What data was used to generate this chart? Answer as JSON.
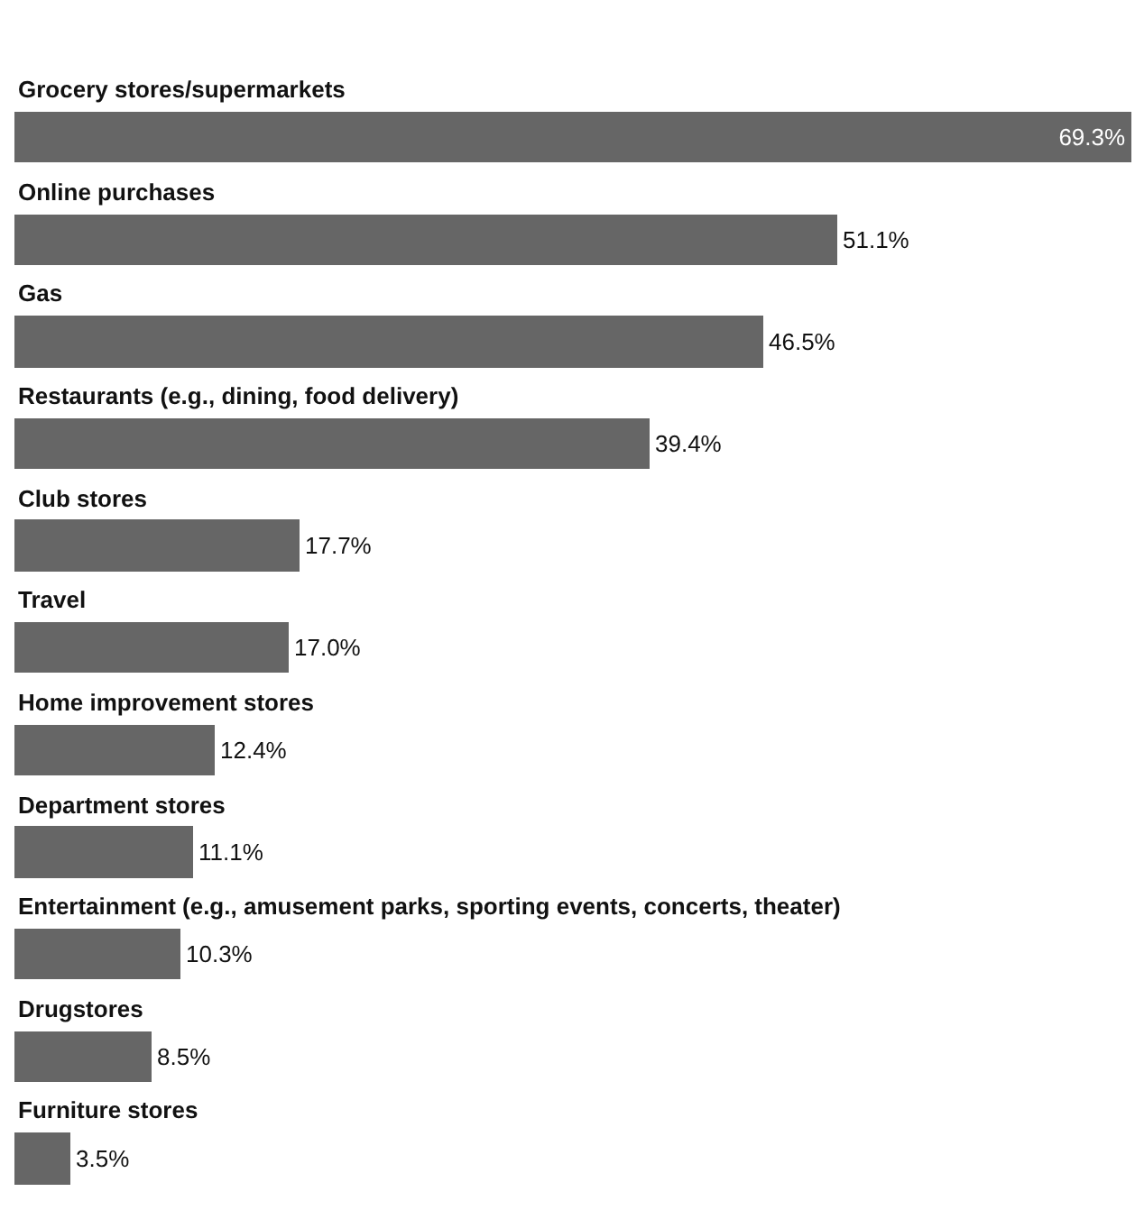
{
  "chart_data": {
    "type": "bar",
    "orientation": "horizontal",
    "color": "#666666",
    "categories": [
      "Grocery stores/supermarkets",
      "Online purchases",
      "Gas",
      "Restaurants (e.g., dining, food delivery)",
      "Club stores",
      "Travel",
      "Home improvement stores",
      "Department stores",
      "Entertainment (e.g., amusement parks, sporting events, concerts, theater)",
      "Drugstores",
      "Furniture stores"
    ],
    "values": [
      69.3,
      51.1,
      46.5,
      39.4,
      17.7,
      17.0,
      12.4,
      11.1,
      10.3,
      8.5,
      3.5
    ],
    "value_labels": [
      "69.3%",
      "51.1%",
      "46.5%",
      "39.4%",
      "17.7%",
      "17.0%",
      "12.4%",
      "11.1%",
      "10.3%",
      "8.5%",
      "3.5%"
    ],
    "xlim": [
      0,
      69.3
    ],
    "tick_labels": false
  }
}
